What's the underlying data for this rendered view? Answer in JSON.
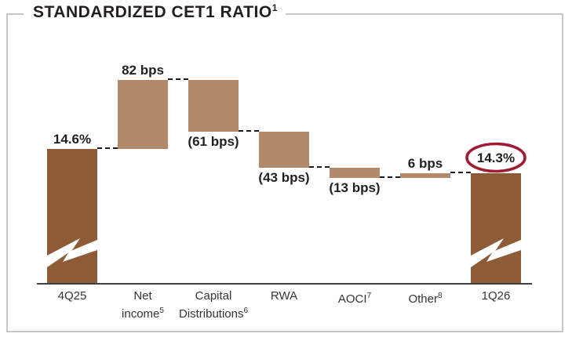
{
  "title": {
    "text": "STANDARDIZED CET1 RATIO",
    "sup": "1"
  },
  "colors": {
    "bar_dark": "#8d5b36",
    "bar_light": "#b18a6b",
    "highlight_ellipse": "#9e1b32",
    "label_text": "#231f20",
    "axis_line": "#404040",
    "frame_border": "#c6c6c6",
    "connector": "#1b1b1b"
  },
  "chart_data": {
    "type": "bar",
    "subtype": "waterfall",
    "title": "STANDARDIZED CET1 RATIO",
    "unit": "bps",
    "start_value_pct": 14.6,
    "end_value_pct": 14.3,
    "grid": false,
    "legend": null,
    "bars": [
      {
        "category_lines": [
          "4Q25"
        ],
        "sup": "",
        "value_label": "14.6%",
        "bps": 1460,
        "role": "total",
        "break_mark": true,
        "highlighted": false
      },
      {
        "category_lines": [
          "Net",
          "income"
        ],
        "sup": "5",
        "value_label": "82 bps",
        "bps": 82,
        "role": "increase",
        "break_mark": false,
        "highlighted": false
      },
      {
        "category_lines": [
          "Capital",
          "Distributions"
        ],
        "sup": "6",
        "value_label": "(61 bps)",
        "bps": -61,
        "role": "decrease",
        "break_mark": false,
        "highlighted": false
      },
      {
        "category_lines": [
          "RWA"
        ],
        "sup": "",
        "value_label": "(43 bps)",
        "bps": -43,
        "role": "decrease",
        "break_mark": false,
        "highlighted": false
      },
      {
        "category_lines": [
          "AOCI"
        ],
        "sup": "7",
        "value_label": "(13 bps)",
        "bps": -13,
        "role": "decrease",
        "break_mark": false,
        "highlighted": false
      },
      {
        "category_lines": [
          "Other"
        ],
        "sup": "8",
        "value_label": "6 bps",
        "bps": 6,
        "role": "increase",
        "break_mark": false,
        "highlighted": false
      },
      {
        "category_lines": [
          "1Q26"
        ],
        "sup": "",
        "value_label": "14.3%",
        "bps": 1431,
        "role": "total",
        "break_mark": true,
        "highlighted": true
      }
    ]
  }
}
